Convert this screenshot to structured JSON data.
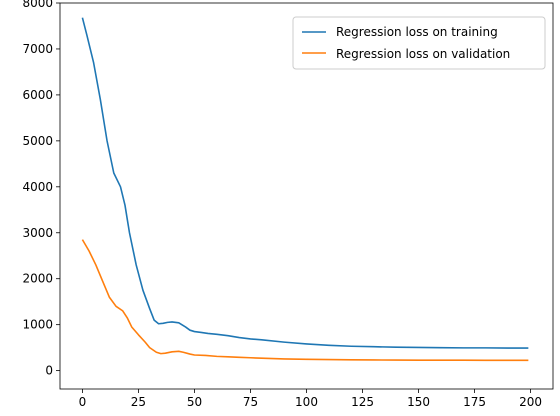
{
  "chart_data": {
    "type": "line",
    "title": "",
    "xlabel": "",
    "ylabel": "",
    "xlim": [
      -10,
      210
    ],
    "ylim": [
      -400,
      8000
    ],
    "xticks": [
      0,
      25,
      50,
      75,
      100,
      125,
      150,
      175,
      200
    ],
    "yticks": [
      0,
      1000,
      2000,
      3000,
      4000,
      5000,
      6000,
      7000,
      8000
    ],
    "grid": false,
    "legend_position": "top-right",
    "series": [
      {
        "name": "Regression loss on training",
        "color": "#1f77b4",
        "x": [
          0,
          2,
          5,
          8,
          11,
          14,
          17,
          19,
          21,
          24,
          27,
          30,
          32,
          34,
          36,
          38,
          40,
          43,
          46,
          48,
          50,
          53,
          56,
          60,
          65,
          70,
          75,
          80,
          90,
          100,
          110,
          120,
          130,
          140,
          150,
          160,
          170,
          180,
          190,
          199
        ],
        "y": [
          7680,
          7300,
          6700,
          5900,
          5000,
          4300,
          4000,
          3600,
          3000,
          2300,
          1750,
          1350,
          1100,
          1020,
          1030,
          1050,
          1060,
          1040,
          950,
          880,
          850,
          830,
          810,
          790,
          760,
          720,
          690,
          670,
          620,
          580,
          550,
          530,
          520,
          510,
          505,
          500,
          495,
          495,
          490,
          490
        ]
      },
      {
        "name": "Regression loss on validation",
        "color": "#ff7f0e",
        "x": [
          0,
          3,
          6,
          9,
          12,
          15,
          18,
          20,
          22,
          25,
          28,
          30,
          33,
          35,
          37,
          40,
          43,
          45,
          48,
          50,
          55,
          60,
          65,
          70,
          75,
          80,
          90,
          100,
          110,
          120,
          130,
          140,
          150,
          160,
          170,
          180,
          190,
          199
        ],
        "y": [
          2850,
          2600,
          2300,
          1950,
          1600,
          1400,
          1300,
          1150,
          950,
          780,
          620,
          500,
          400,
          370,
          380,
          410,
          420,
          400,
          360,
          340,
          330,
          310,
          300,
          290,
          280,
          270,
          255,
          245,
          240,
          235,
          232,
          230,
          228,
          227,
          226,
          225,
          225,
          225
        ]
      }
    ]
  }
}
